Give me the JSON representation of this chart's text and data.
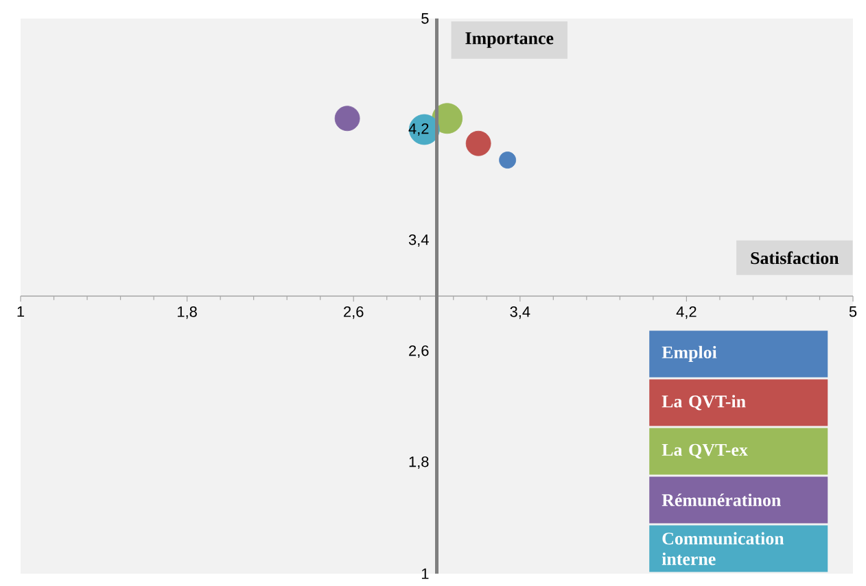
{
  "chart_data": {
    "type": "bubble",
    "xlabel": "Satisfaction",
    "ylabel": "Importance",
    "xlim": [
      1,
      5
    ],
    "ylim": [
      1,
      5
    ],
    "xticks": [
      1,
      {
        "value": 1.8,
        "label": "1,8"
      },
      {
        "value": 2.6,
        "label": "2,6"
      },
      {
        "value": 3.4,
        "label": "3,4"
      },
      {
        "value": 4.2,
        "label": "4,2"
      },
      5
    ],
    "yticks": [
      1,
      {
        "value": 1.8,
        "label": "1,8"
      },
      {
        "value": 2.6,
        "label": "2,6"
      },
      {
        "value": 3.4,
        "label": "3,4"
      },
      {
        "value": 4.2,
        "label": "4,2"
      },
      5
    ],
    "marker": "circle",
    "legend": "bottom right",
    "series": [
      {
        "name": "Emploi",
        "color": "#4f81bd",
        "x": [
          3.34
        ],
        "values": [
          3.98
        ],
        "sizes": [
          0.3
        ]
      },
      {
        "name": "La QVT-in",
        "color": "#c0504d",
        "x": [
          3.2
        ],
        "values": [
          4.1
        ],
        "sizes": [
          0.67
        ]
      },
      {
        "name": "La QVT-ex",
        "color": "#9bbb59",
        "x": [
          3.05
        ],
        "values": [
          4.28
        ],
        "sizes": [
          1
        ]
      },
      {
        "name": "Rémunératinon",
        "color": "#8064a2",
        "x": [
          2.57
        ],
        "values": [
          4.28
        ],
        "sizes": [
          0.67
        ]
      },
      {
        "name": "Communication interne",
        "color": "#4bacc6",
        "x": [
          2.94
        ],
        "values": [
          4.2
        ],
        "sizes": [
          1
        ]
      }
    ]
  }
}
